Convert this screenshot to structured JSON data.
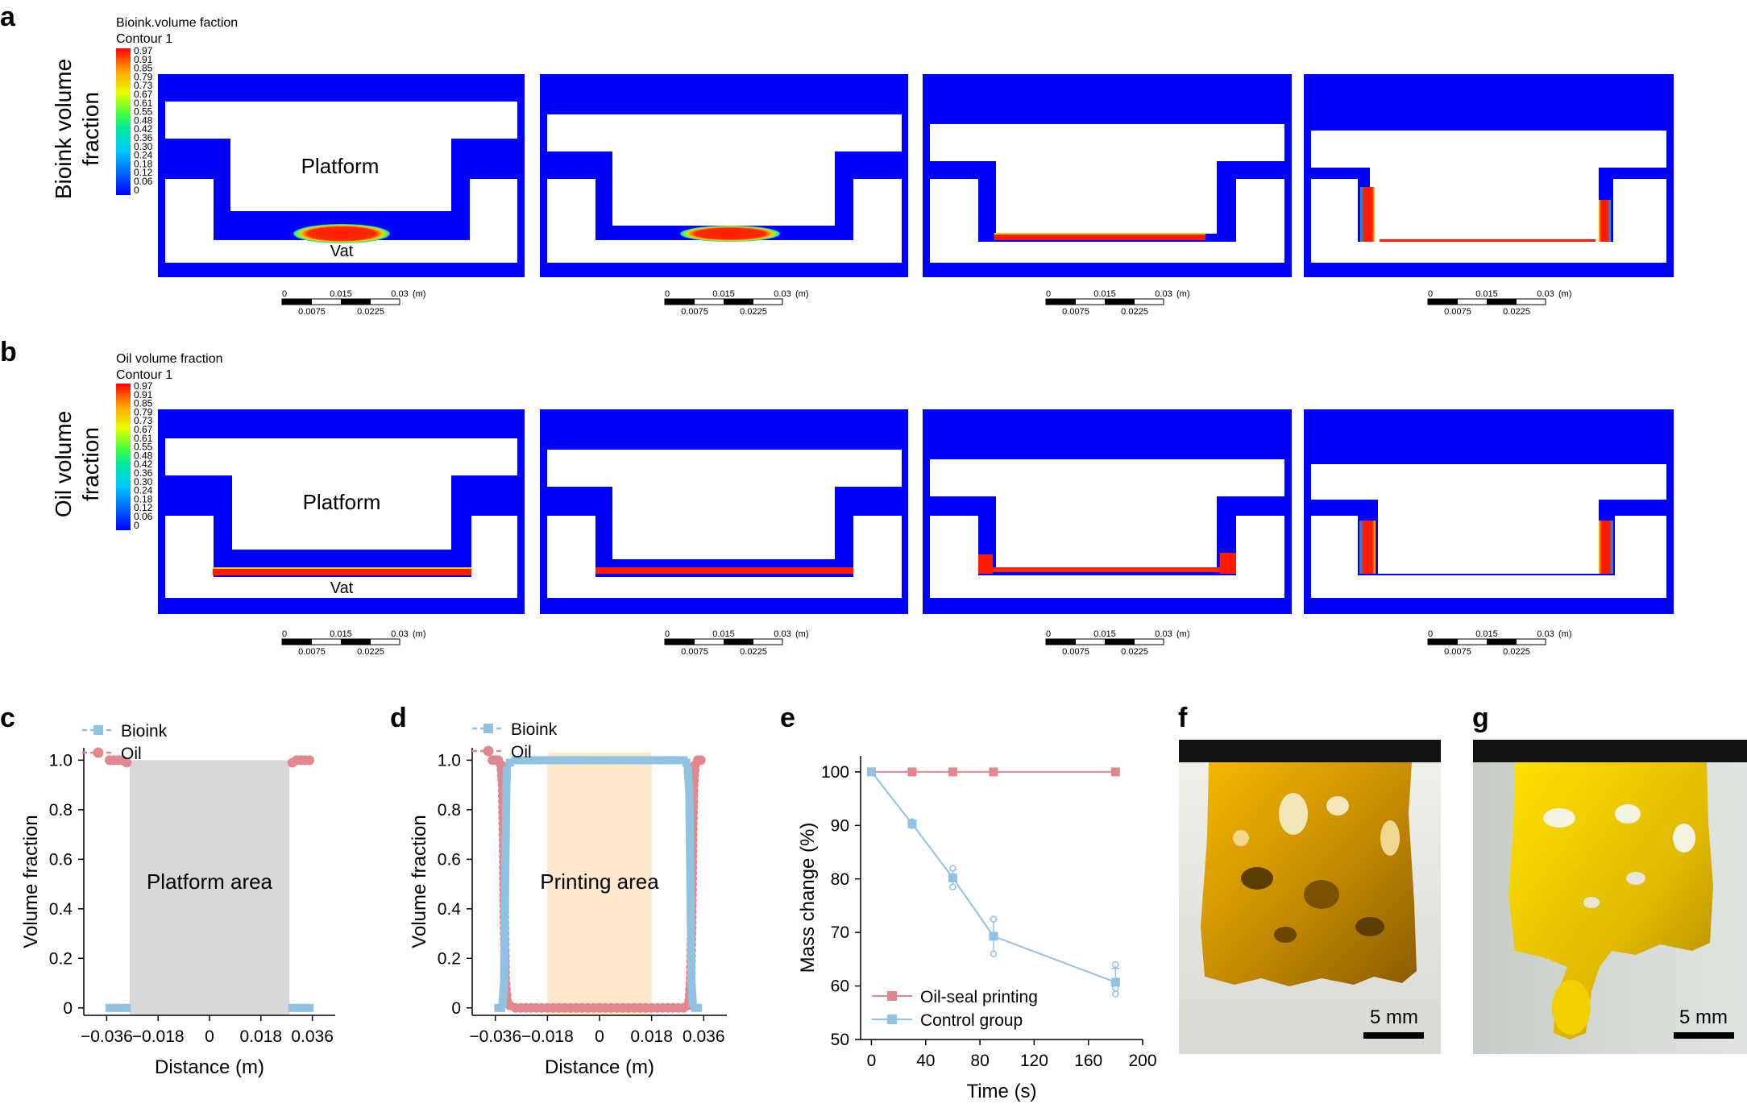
{
  "panels": {
    "a": {
      "letter": "a",
      "row_label_line1": "Bioink volume",
      "row_label_line2": "fraction",
      "colorbar_title": "Bioink.volume faction",
      "colorbar_subtitle": "Contour 1",
      "platform_label": "Platform",
      "vat_label": "Vat"
    },
    "b": {
      "letter": "b",
      "row_label_line1": "Oil volume",
      "row_label_line2": "fraction",
      "colorbar_title": "Oil volume fraction",
      "colorbar_subtitle": "Contour 1",
      "platform_label": "Platform",
      "vat_label": "Vat"
    },
    "c": {
      "letter": "c"
    },
    "d": {
      "letter": "d"
    },
    "e": {
      "letter": "e"
    },
    "f": {
      "letter": "f",
      "scale_label": "5 mm"
    },
    "g": {
      "letter": "g",
      "scale_label": "5 mm"
    }
  },
  "colorbar_ticks": [
    "0.97",
    "0.91",
    "0.85",
    "0.79",
    "0.73",
    "0.67",
    "0.61",
    "0.55",
    "0.48",
    "0.42",
    "0.36",
    "0.30",
    "0.24",
    "0.18",
    "0.12",
    "0.06",
    "0"
  ],
  "scalebar": {
    "top_labels": [
      "0",
      "0.015",
      "0.03"
    ],
    "unit": "(m)",
    "bottom_labels": [
      "0.0075",
      "0.0225"
    ]
  },
  "colors": {
    "bioink": "#92c2e2",
    "oil": "#e3878f",
    "platform_area": "#d8d8d8",
    "printing_area": "#fde7cd",
    "sim_blue": "#0000ff",
    "sim_red": "#ff1a00"
  },
  "chart_data": [
    {
      "id": "c",
      "type": "scatter",
      "xlabel": "Distance (m)",
      "ylabel": "Volume fraction",
      "xlim": [
        -0.044,
        0.044
      ],
      "ylim": [
        -0.03,
        1.05
      ],
      "xticks": [
        -0.036,
        -0.018,
        0,
        0.018,
        0.036
      ],
      "xtick_labels": [
        "−0.036",
        "−0.018",
        "0",
        "0.018",
        "0.036"
      ],
      "yticks": [
        0,
        0.2,
        0.4,
        0.6,
        0.8,
        1.0
      ],
      "ytick_labels": [
        "0",
        "0.2",
        "0.4",
        "0.6",
        "0.8",
        "1.0"
      ],
      "shaded_region": {
        "x": [
          -0.028,
          0.028
        ],
        "y": [
          -0.03,
          1.0
        ],
        "label": "Platform area"
      },
      "legend": [
        {
          "name": "Bioink",
          "marker": "square"
        },
        {
          "name": "Oil",
          "marker": "circle"
        }
      ],
      "series": [
        {
          "name": "Bioink",
          "points": [
            [
              -0.035,
              0.0
            ],
            [
              -0.0335,
              0.0
            ],
            [
              -0.032,
              0.0
            ],
            [
              -0.0305,
              0.0
            ],
            [
              -0.029,
              0.0
            ],
            [
              0.029,
              0.0
            ],
            [
              0.0305,
              0.0
            ],
            [
              0.032,
              0.0
            ],
            [
              0.0335,
              0.0
            ],
            [
              0.035,
              0.0
            ]
          ]
        },
        {
          "name": "Oil",
          "points": [
            [
              -0.035,
              1.0
            ],
            [
              -0.0335,
              1.0
            ],
            [
              -0.032,
              1.0
            ],
            [
              -0.0305,
              1.0
            ],
            [
              -0.029,
              0.99
            ],
            [
              0.029,
              0.99
            ],
            [
              0.0305,
              1.0
            ],
            [
              0.032,
              1.0
            ],
            [
              0.0335,
              1.0
            ],
            [
              0.035,
              1.0
            ]
          ]
        }
      ]
    },
    {
      "id": "d",
      "type": "scatter",
      "xlabel": "Distance (m)",
      "ylabel": "Volume fraction",
      "xlim": [
        -0.044,
        0.044
      ],
      "ylim": [
        -0.03,
        1.05
      ],
      "xticks": [
        -0.036,
        -0.018,
        0,
        0.018,
        0.036
      ],
      "xtick_labels": [
        "−0.036",
        "−0.018",
        "0",
        "0.018",
        "0.036"
      ],
      "yticks": [
        0,
        0.2,
        0.4,
        0.6,
        0.8,
        1.0
      ],
      "ytick_labels": [
        "0",
        "0.2",
        "0.4",
        "0.6",
        "0.8",
        "1.0"
      ],
      "shaded_region": {
        "x": [
          -0.018,
          0.018
        ],
        "y": [
          -0.03,
          1.03
        ],
        "label": "Printing area"
      },
      "legend": [
        {
          "name": "Bioink",
          "marker": "square"
        },
        {
          "name": "Oil",
          "marker": "circle"
        }
      ],
      "series": [
        {
          "name": "Bioink",
          "points": [
            [
              -0.035,
              0.0
            ],
            [
              -0.034,
              0.0
            ],
            [
              -0.0335,
              0.02
            ],
            [
              -0.033,
              0.1
            ],
            [
              -0.0328,
              0.3
            ],
            [
              -0.0326,
              0.5
            ],
            [
              -0.0324,
              0.7
            ],
            [
              -0.0322,
              0.88
            ],
            [
              -0.032,
              0.96
            ],
            [
              -0.031,
              0.99
            ],
            [
              -0.029,
              1.0
            ],
            [
              -0.02,
              1.0
            ],
            [
              -0.01,
              1.0
            ],
            [
              0.0,
              1.0
            ],
            [
              0.01,
              1.0
            ],
            [
              0.02,
              1.0
            ],
            [
              0.029,
              1.0
            ],
            [
              0.03,
              0.99
            ],
            [
              0.0305,
              0.96
            ],
            [
              0.031,
              0.88
            ],
            [
              0.0312,
              0.7
            ],
            [
              0.0314,
              0.5
            ],
            [
              0.0316,
              0.3
            ],
            [
              0.0318,
              0.1
            ],
            [
              0.0322,
              0.02
            ],
            [
              0.033,
              0.0
            ],
            [
              0.034,
              0.0
            ]
          ]
        },
        {
          "name": "Oil",
          "points": [
            [
              -0.037,
              1.0
            ],
            [
              -0.036,
              1.0
            ],
            [
              -0.035,
              1.0
            ],
            [
              -0.034,
              0.98
            ],
            [
              -0.0335,
              0.9
            ],
            [
              -0.0332,
              0.7
            ],
            [
              -0.033,
              0.5
            ],
            [
              -0.0328,
              0.3
            ],
            [
              -0.0326,
              0.12
            ],
            [
              -0.032,
              0.03
            ],
            [
              -0.031,
              0.01
            ],
            [
              -0.029,
              0.0
            ],
            [
              -0.02,
              0.0
            ],
            [
              -0.01,
              0.0
            ],
            [
              0.0,
              0.0
            ],
            [
              0.01,
              0.0
            ],
            [
              0.02,
              0.0
            ],
            [
              0.029,
              0.0
            ],
            [
              0.0305,
              0.01
            ],
            [
              0.031,
              0.03
            ],
            [
              0.0315,
              0.12
            ],
            [
              0.0318,
              0.3
            ],
            [
              0.032,
              0.5
            ],
            [
              0.0322,
              0.7
            ],
            [
              0.0325,
              0.9
            ],
            [
              0.033,
              0.98
            ],
            [
              0.034,
              1.0
            ],
            [
              0.035,
              1.0
            ]
          ]
        }
      ]
    },
    {
      "id": "e",
      "type": "line",
      "xlabel": "Time (s)",
      "ylabel": "Mass change (%)",
      "xlim": [
        -8,
        200
      ],
      "ylim": [
        50,
        103
      ],
      "xticks": [
        0,
        40,
        80,
        120,
        160,
        200
      ],
      "xtick_labels": [
        "0",
        "40",
        "80",
        "120",
        "160",
        "200"
      ],
      "yticks": [
        50,
        60,
        70,
        80,
        90,
        100
      ],
      "ytick_labels": [
        "50",
        "60",
        "70",
        "80",
        "90",
        "100"
      ],
      "legend": [
        {
          "name": "Oil-seal printing",
          "marker": "square"
        },
        {
          "name": "Control group",
          "marker": "square"
        }
      ],
      "series": [
        {
          "name": "Oil-seal printing",
          "x": [
            0,
            30,
            60,
            90,
            180
          ],
          "y": [
            100,
            100,
            100,
            100,
            100
          ],
          "replicates": []
        },
        {
          "name": "Control group",
          "x": [
            0,
            30,
            60,
            90,
            180
          ],
          "y": [
            100,
            90.3,
            80.2,
            69.3,
            60.7
          ],
          "error": [
            0,
            0.5,
            1.5,
            3.2,
            2.6
          ],
          "replicates": [
            [
              100
            ],
            [
              90.7,
              90.0,
              90.3
            ],
            [
              82.0,
              78.5,
              80.1
            ],
            [
              72.5,
              66.0,
              69.4
            ],
            [
              64.0,
              58.5,
              59.6
            ]
          ]
        }
      ]
    }
  ]
}
